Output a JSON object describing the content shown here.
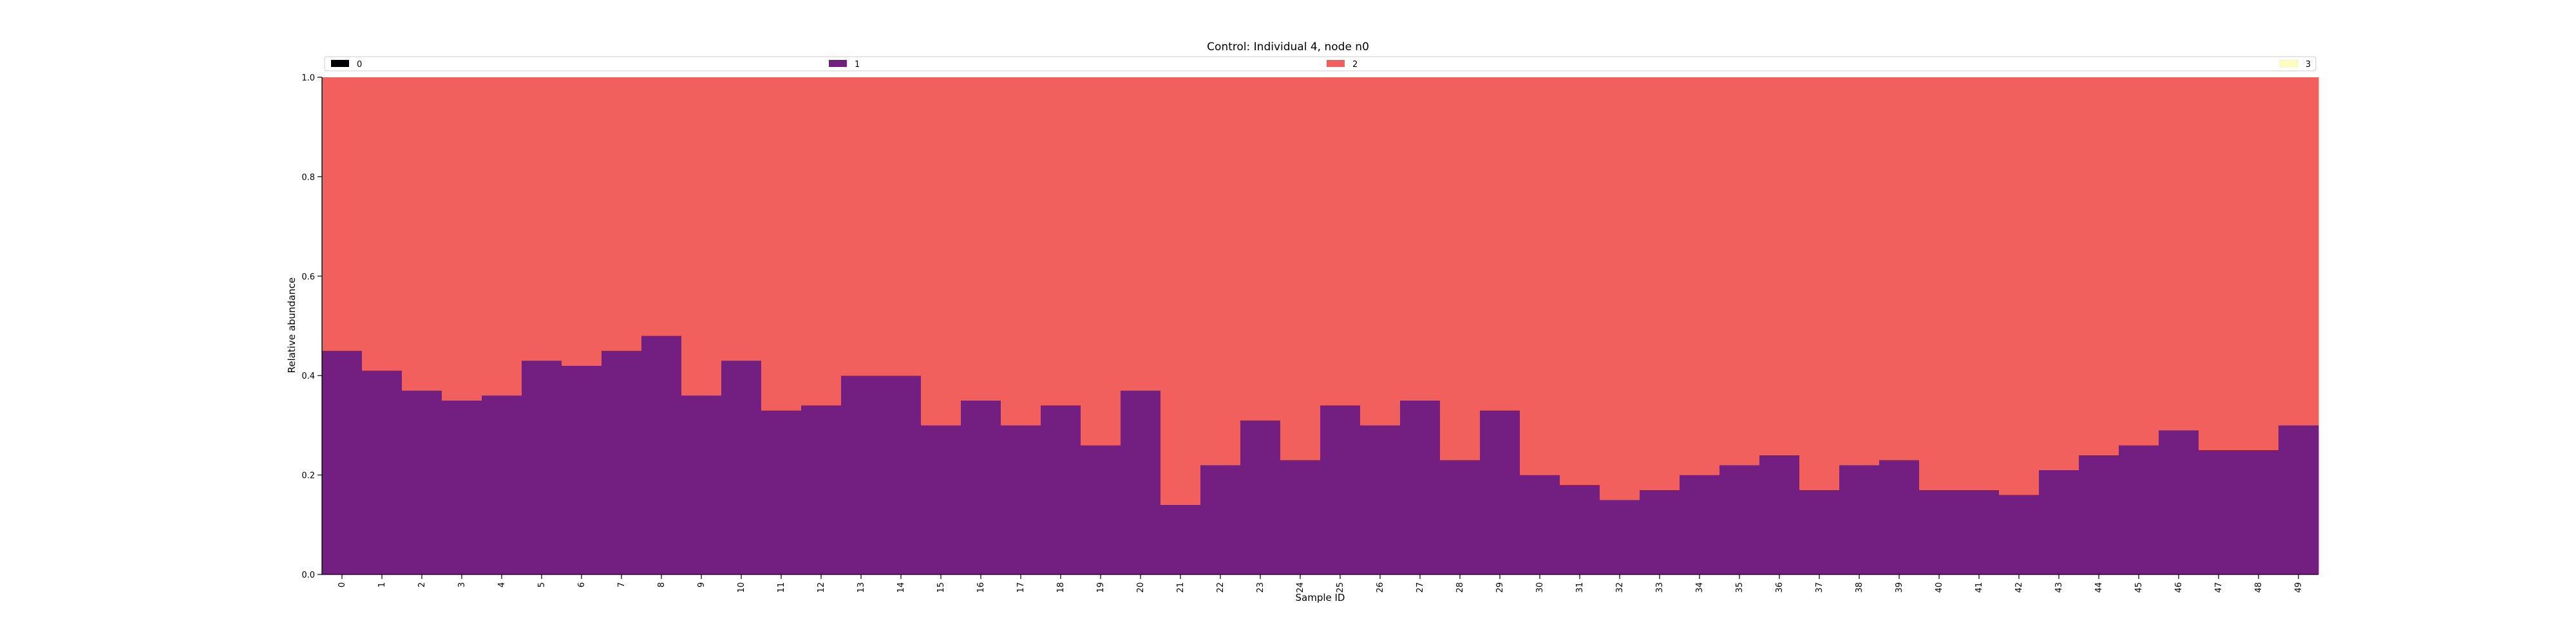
{
  "chart_data": {
    "type": "bar",
    "stacked": true,
    "title": "Control: Individual 4, node n0",
    "xlabel": "Sample ID",
    "ylabel": "Relative abundance",
    "ylim": [
      0,
      1
    ],
    "yticks": [
      "0.0",
      "0.2",
      "0.4",
      "0.6",
      "0.8",
      "1.0"
    ],
    "categories": [
      "0",
      "1",
      "2",
      "3",
      "4",
      "5",
      "6",
      "7",
      "8",
      "9",
      "10",
      "11",
      "12",
      "13",
      "14",
      "15",
      "16",
      "17",
      "18",
      "19",
      "20",
      "21",
      "22",
      "23",
      "24",
      "25",
      "26",
      "27",
      "28",
      "29",
      "30",
      "31",
      "32",
      "33",
      "34",
      "35",
      "36",
      "37",
      "38",
      "39",
      "40",
      "41",
      "42",
      "43",
      "44",
      "45",
      "46",
      "47",
      "48",
      "49"
    ],
    "series": [
      {
        "name": "0",
        "color": "#000004",
        "values": [
          0,
          0,
          0,
          0,
          0,
          0,
          0,
          0,
          0,
          0,
          0,
          0,
          0,
          0,
          0,
          0,
          0,
          0,
          0,
          0,
          0,
          0,
          0,
          0,
          0,
          0,
          0,
          0,
          0,
          0,
          0,
          0,
          0,
          0,
          0,
          0,
          0,
          0,
          0,
          0,
          0,
          0,
          0,
          0,
          0,
          0,
          0,
          0,
          0,
          0
        ]
      },
      {
        "name": "1",
        "color": "#721f81",
        "values": [
          0.45,
          0.41,
          0.37,
          0.35,
          0.36,
          0.43,
          0.42,
          0.45,
          0.48,
          0.36,
          0.43,
          0.33,
          0.34,
          0.4,
          0.4,
          0.3,
          0.35,
          0.3,
          0.34,
          0.26,
          0.37,
          0.14,
          0.22,
          0.31,
          0.23,
          0.34,
          0.3,
          0.35,
          0.23,
          0.33,
          0.2,
          0.18,
          0.15,
          0.17,
          0.2,
          0.22,
          0.24,
          0.17,
          0.22,
          0.23,
          0.17,
          0.17,
          0.16,
          0.21,
          0.24,
          0.26,
          0.29,
          0.25,
          0.25,
          0.3
        ]
      },
      {
        "name": "2",
        "color": "#f1605d",
        "values": [
          0.55,
          0.59,
          0.63,
          0.65,
          0.64,
          0.57,
          0.58,
          0.55,
          0.52,
          0.64,
          0.57,
          0.67,
          0.66,
          0.6,
          0.6,
          0.7,
          0.65,
          0.7,
          0.66,
          0.74,
          0.63,
          0.86,
          0.78,
          0.69,
          0.77,
          0.66,
          0.7,
          0.65,
          0.77,
          0.67,
          0.8,
          0.82,
          0.85,
          0.83,
          0.8,
          0.78,
          0.76,
          0.83,
          0.78,
          0.77,
          0.83,
          0.83,
          0.84,
          0.79,
          0.76,
          0.74,
          0.71,
          0.75,
          0.75,
          0.7
        ]
      },
      {
        "name": "3",
        "color": "#fcfdbf",
        "values": [
          0,
          0,
          0,
          0,
          0,
          0,
          0,
          0,
          0,
          0,
          0,
          0,
          0,
          0,
          0,
          0,
          0,
          0,
          0,
          0,
          0,
          0,
          0,
          0,
          0,
          0,
          0,
          0,
          0,
          0,
          0,
          0,
          0,
          0,
          0,
          0,
          0,
          0,
          0,
          0,
          0,
          0,
          0,
          0,
          0,
          0,
          0,
          0,
          0,
          0
        ]
      }
    ],
    "legend": "top, horizontal",
    "grid": false
  }
}
